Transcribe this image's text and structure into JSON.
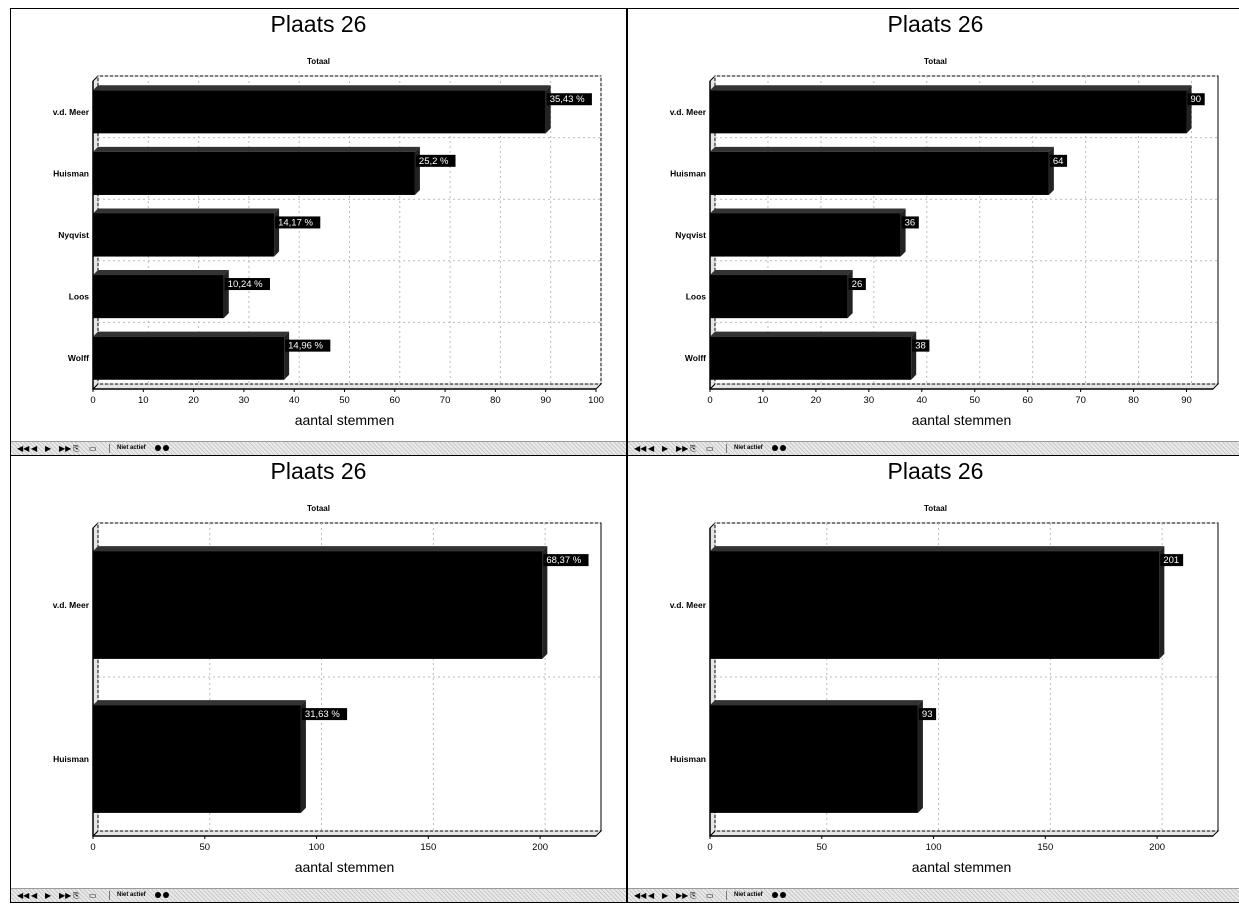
{
  "panels": [
    {
      "title": "Plaats 26",
      "chart_data": {
        "type": "bar",
        "orientation": "horizontal",
        "subtitle": "Totaal",
        "xlabel": "aantal stemmen",
        "categories": [
          "v.d. Meer",
          "Huisman",
          "Nyqvist",
          "Loos",
          "Wolff"
        ],
        "values": [
          90,
          64,
          36,
          26,
          38
        ],
        "data_labels": [
          "35,43 %",
          "25,2 %",
          "14,17 %",
          "10,24 %",
          "14,96 %"
        ],
        "xlim": [
          0,
          100
        ],
        "xticks": [
          0,
          10,
          20,
          30,
          40,
          50,
          60,
          70,
          80,
          90,
          100
        ],
        "grid": true,
        "bar_color": "#000000"
      },
      "toolbar": {
        "buttons": [
          "◀◀",
          "◀",
          "▶",
          "▶▶",
          "⎘",
          "▭"
        ],
        "status_label": "Niet actief"
      }
    },
    {
      "title": "Plaats 26",
      "chart_data": {
        "type": "bar",
        "orientation": "horizontal",
        "subtitle": "Totaal",
        "xlabel": "aantal stemmen",
        "categories": [
          "v.d. Meer",
          "Huisman",
          "Nyqvist",
          "Loos",
          "Wolff"
        ],
        "values": [
          90,
          64,
          36,
          26,
          38
        ],
        "data_labels": [
          "90",
          "64",
          "36",
          "26",
          "38"
        ],
        "xlim": [
          0,
          95
        ],
        "xticks": [
          0,
          10,
          20,
          30,
          40,
          50,
          60,
          70,
          80,
          90
        ],
        "grid": true,
        "bar_color": "#000000"
      },
      "toolbar": {
        "buttons": [
          "◀◀",
          "◀",
          "▶",
          "▶▶",
          "⎘",
          "▭"
        ],
        "status_label": "Niet actief"
      }
    },
    {
      "title": "Plaats 26",
      "chart_data": {
        "type": "bar",
        "orientation": "horizontal",
        "subtitle": "Totaal",
        "xlabel": "aantal stemmen",
        "categories": [
          "v.d. Meer",
          "Huisman"
        ],
        "values": [
          201,
          93
        ],
        "data_labels": [
          "68,37 %",
          "31,63 %"
        ],
        "xlim": [
          0,
          225
        ],
        "xticks": [
          0,
          50,
          100,
          150,
          200
        ],
        "grid": true,
        "bar_color": "#000000"
      },
      "toolbar": {
        "buttons": [
          "◀◀",
          "◀",
          "▶",
          "▶▶",
          "⎘",
          "▭"
        ],
        "status_label": "Niet actief"
      }
    },
    {
      "title": "Plaats 26",
      "chart_data": {
        "type": "bar",
        "orientation": "horizontal",
        "subtitle": "Totaal",
        "xlabel": "aantal stemmen",
        "categories": [
          "v.d. Meer",
          "Huisman"
        ],
        "values": [
          201,
          93
        ],
        "data_labels": [
          "201",
          "93"
        ],
        "xlim": [
          0,
          225
        ],
        "xticks": [
          0,
          50,
          100,
          150,
          200
        ],
        "grid": true,
        "bar_color": "#000000"
      },
      "toolbar": {
        "buttons": [
          "◀◀",
          "◀",
          "▶",
          "▶▶",
          "⎘",
          "▭"
        ],
        "status_label": "Niet actief"
      }
    }
  ]
}
